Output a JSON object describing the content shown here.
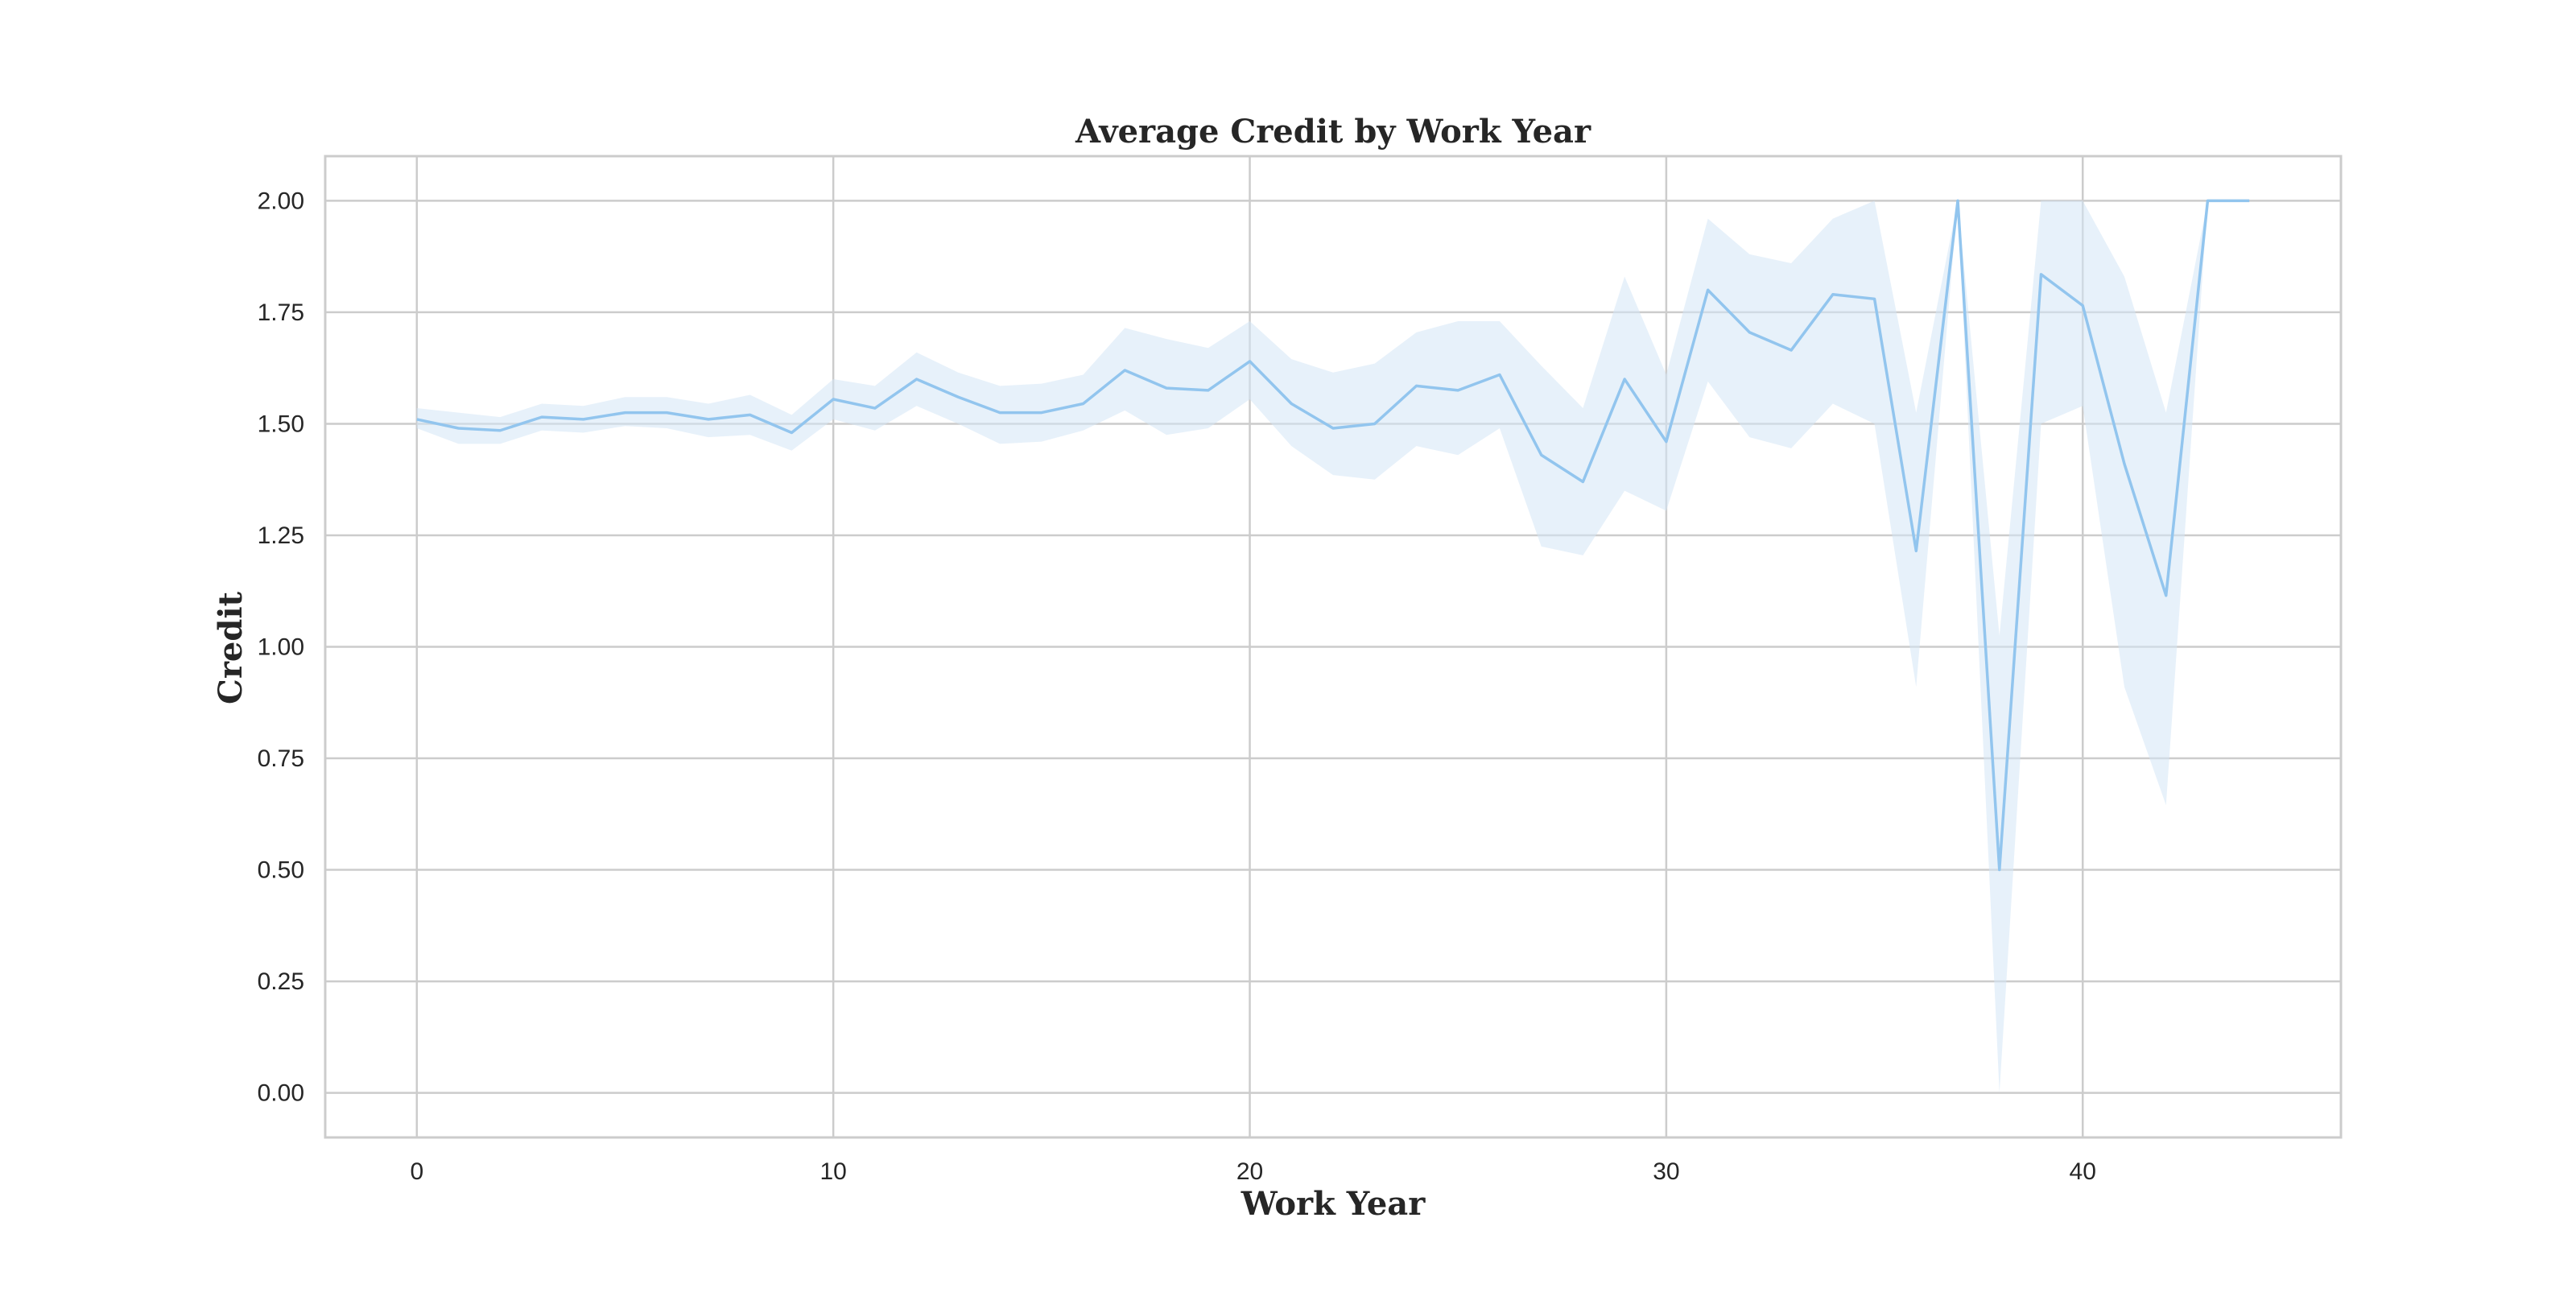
{
  "chart_data": {
    "type": "line",
    "title": "Average Credit by Work Year",
    "xlabel": "Work Year",
    "ylabel": "Credit",
    "xlim": [
      -2.2,
      46.2
    ],
    "ylim": [
      -0.1,
      2.1
    ],
    "x_ticks": [
      0,
      10,
      20,
      30,
      40
    ],
    "x_tick_labels": [
      "0",
      "10",
      "20",
      "30",
      "40"
    ],
    "y_ticks": [
      0.0,
      0.25,
      0.5,
      0.75,
      1.0,
      1.25,
      1.5,
      1.75,
      2.0
    ],
    "y_tick_labels": [
      "0.00",
      "0.25",
      "0.50",
      "0.75",
      "1.00",
      "1.25",
      "1.50",
      "1.75",
      "2.00"
    ],
    "grid": true,
    "legend": "none",
    "colors": {
      "line": "#92c5ee",
      "band": "#d3e6f6",
      "grid": "#cccccc",
      "frame": "#cccccc",
      "text": "#262626",
      "background": "#ffffff"
    },
    "series": [
      {
        "x": [
          0,
          1,
          2,
          3,
          4,
          5,
          6,
          7,
          8,
          9,
          10,
          11,
          12,
          13,
          14,
          15,
          16,
          17,
          18,
          19,
          20,
          21,
          22,
          23,
          24,
          25,
          26,
          27,
          28,
          29,
          30,
          31,
          32,
          33,
          34,
          35,
          36,
          37,
          38,
          39,
          40,
          41,
          42,
          43,
          44
        ],
        "y": [
          1.51,
          1.49,
          1.485,
          1.515,
          1.51,
          1.525,
          1.525,
          1.51,
          1.52,
          1.48,
          1.555,
          1.535,
          1.6,
          1.56,
          1.525,
          1.525,
          1.545,
          1.62,
          1.58,
          1.575,
          1.64,
          1.545,
          1.49,
          1.5,
          1.585,
          1.575,
          1.61,
          1.43,
          1.37,
          1.6,
          1.46,
          1.8,
          1.705,
          1.665,
          1.79,
          1.78,
          1.215,
          2.0,
          0.5,
          1.835,
          1.765,
          1.41,
          1.115,
          2.0,
          2.0
        ],
        "ci_lower": [
          1.49,
          1.455,
          1.455,
          1.485,
          1.48,
          1.495,
          1.49,
          1.47,
          1.475,
          1.44,
          1.51,
          1.485,
          1.54,
          1.5,
          1.455,
          1.46,
          1.485,
          1.53,
          1.475,
          1.49,
          1.555,
          1.45,
          1.385,
          1.375,
          1.45,
          1.43,
          1.49,
          1.225,
          1.205,
          1.35,
          1.305,
          1.595,
          1.47,
          1.445,
          1.545,
          1.5,
          0.91,
          2.0,
          0.0,
          1.5,
          1.54,
          0.91,
          0.645,
          2.0,
          2.0
        ],
        "ci_upper": [
          1.535,
          1.525,
          1.515,
          1.545,
          1.54,
          1.56,
          1.56,
          1.545,
          1.565,
          1.52,
          1.6,
          1.585,
          1.66,
          1.615,
          1.585,
          1.59,
          1.61,
          1.715,
          1.69,
          1.67,
          1.73,
          1.645,
          1.615,
          1.635,
          1.705,
          1.73,
          1.73,
          1.63,
          1.535,
          1.83,
          1.61,
          1.96,
          1.88,
          1.86,
          1.96,
          2.0,
          1.525,
          2.0,
          1.025,
          2.0,
          2.0,
          1.83,
          1.525,
          2.0,
          2.0
        ]
      }
    ]
  }
}
